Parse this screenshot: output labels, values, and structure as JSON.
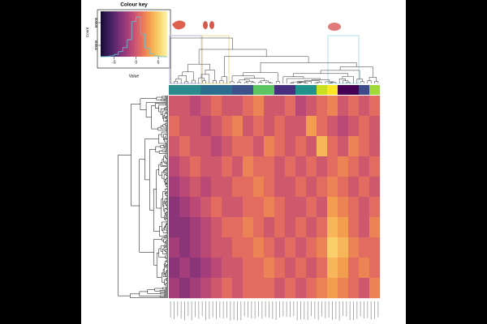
{
  "chart_data": {
    "type": "heatmap",
    "key": {
      "title": "Colour key",
      "xlabel": "Value",
      "ylabel": "Count",
      "xlim": [
        -8,
        7
      ],
      "xticks": [
        -5,
        0,
        5
      ],
      "ylim": [
        0,
        80000
      ],
      "yticks": [
        20000,
        60000
      ],
      "bins": [
        -8,
        -7,
        -6,
        -5,
        -4,
        -3,
        -2,
        -1,
        0,
        1,
        2,
        3,
        4,
        5,
        6,
        7
      ],
      "counts": [
        0,
        200,
        1500,
        4000,
        9000,
        16000,
        30000,
        62000,
        70000,
        40000,
        15000,
        5000,
        1500,
        300,
        0
      ],
      "hist_color": "#5fc8d8"
    },
    "palette": [
      "#14092e",
      "#3b1f5e",
      "#6a2a72",
      "#9b3a7c",
      "#c64f72",
      "#e8735a",
      "#f5a34c",
      "#f8d26c",
      "#fcf3a8"
    ],
    "column_annotation": [
      "#2a8a8c",
      "#2a8a8c",
      "#2a8a8c",
      "#2d6e8e",
      "#2d6e8e",
      "#2d6e8e",
      "#3b528b",
      "#3b528b",
      "#5cc463",
      "#5cc463",
      "#472f7d",
      "#472f7d",
      "#21918c",
      "#21918c",
      "#c8e020",
      "#fde725",
      "#440154",
      "#440154",
      "#3e4a89",
      "#a0da39"
    ],
    "values": [
      [
        0,
        0,
        -1,
        0,
        1,
        0,
        0,
        1,
        2,
        0,
        0,
        1,
        -1,
        0,
        1,
        2,
        0,
        1,
        0,
        1
      ],
      [
        1,
        0,
        0,
        -1,
        0,
        1,
        2,
        0,
        1,
        0,
        1,
        0,
        0,
        3,
        1,
        0,
        -1,
        0,
        1,
        0
      ],
      [
        0,
        1,
        0,
        0,
        -1,
        0,
        1,
        1,
        0,
        2,
        1,
        0,
        1,
        0,
        4,
        1,
        0,
        2,
        1,
        0
      ],
      [
        -1,
        0,
        1,
        0,
        0,
        1,
        0,
        2,
        1,
        1,
        0,
        1,
        0,
        1,
        0,
        1,
        2,
        1,
        0,
        1
      ],
      [
        -2,
        -1,
        0,
        -1,
        0,
        0,
        1,
        1,
        2,
        1,
        0,
        0,
        1,
        0,
        1,
        2,
        1,
        0,
        1,
        0
      ],
      [
        -3,
        -2,
        -1,
        0,
        1,
        0,
        0,
        1,
        1,
        2,
        1,
        0,
        0,
        1,
        0,
        3,
        2,
        1,
        0,
        1
      ],
      [
        -3,
        -3,
        -2,
        -1,
        0,
        1,
        1,
        2,
        1,
        0,
        1,
        0,
        1,
        0,
        1,
        4,
        3,
        1,
        0,
        2
      ],
      [
        -2,
        -3,
        -2,
        -1,
        0,
        0,
        1,
        1,
        2,
        1,
        0,
        1,
        0,
        1,
        2,
        5,
        4,
        2,
        1,
        1
      ],
      [
        -3,
        -2,
        -3,
        -2,
        -1,
        0,
        0,
        1,
        1,
        2,
        1,
        0,
        1,
        0,
        1,
        4,
        3,
        1,
        2,
        1
      ],
      [
        -2,
        -3,
        -2,
        -1,
        0,
        1,
        0,
        1,
        1,
        1,
        0,
        1,
        0,
        1,
        2,
        3,
        2,
        1,
        0,
        2
      ]
    ]
  }
}
